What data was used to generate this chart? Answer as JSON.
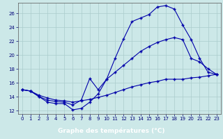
{
  "xlabel": "Graphe des températures (°C)",
  "background_color": "#cce8e8",
  "grid_color": "#aacccc",
  "line_color": "#0000aa",
  "xlim": [
    -0.5,
    23.5
  ],
  "ylim": [
    11.5,
    27.5
  ],
  "yticks": [
    12,
    14,
    16,
    18,
    20,
    22,
    24,
    26
  ],
  "xticks": [
    0,
    1,
    2,
    3,
    4,
    5,
    6,
    7,
    8,
    9,
    10,
    11,
    12,
    13,
    14,
    15,
    16,
    17,
    18,
    19,
    20,
    21,
    22,
    23
  ],
  "curve1_x": [
    0,
    1,
    2,
    3,
    4,
    5,
    6,
    7,
    8,
    9,
    10,
    11,
    12,
    13,
    14,
    15,
    16,
    17,
    18,
    19,
    20,
    21,
    22,
    23
  ],
  "curve1_y": [
    15.0,
    14.8,
    14.0,
    13.2,
    13.0,
    13.0,
    12.1,
    12.3,
    13.2,
    14.4,
    16.5,
    19.5,
    22.3,
    24.8,
    25.3,
    25.8,
    26.9,
    27.1,
    26.6,
    24.3,
    22.2,
    19.5,
    17.5,
    17.2
  ],
  "curve2_x": [
    0,
    1,
    2,
    3,
    4,
    5,
    6,
    7,
    8,
    9,
    10,
    11,
    12,
    13,
    14,
    15,
    16,
    17,
    18,
    19,
    20,
    21,
    22,
    23
  ],
  "curve2_y": [
    15.0,
    14.8,
    14.0,
    13.5,
    13.3,
    13.2,
    12.8,
    13.5,
    16.6,
    15.0,
    16.5,
    17.5,
    18.5,
    19.5,
    20.5,
    21.2,
    21.8,
    22.2,
    22.5,
    22.2,
    19.5,
    19.0,
    18.0,
    17.2
  ],
  "curve3_x": [
    0,
    1,
    2,
    3,
    4,
    5,
    6,
    7,
    8,
    9,
    10,
    11,
    12,
    13,
    14,
    15,
    16,
    17,
    18,
    19,
    20,
    21,
    22,
    23
  ],
  "curve3_y": [
    15.0,
    14.8,
    14.2,
    13.8,
    13.5,
    13.4,
    13.2,
    13.4,
    13.6,
    13.9,
    14.2,
    14.6,
    15.0,
    15.4,
    15.7,
    16.0,
    16.2,
    16.5,
    16.5,
    16.5,
    16.7,
    16.8,
    17.0,
    17.2
  ],
  "label_bar_color": "#0000aa",
  "label_text_color": "#ffffff",
  "label_fontsize": 6.5,
  "tick_fontsize": 5,
  "tick_color": "#000077"
}
